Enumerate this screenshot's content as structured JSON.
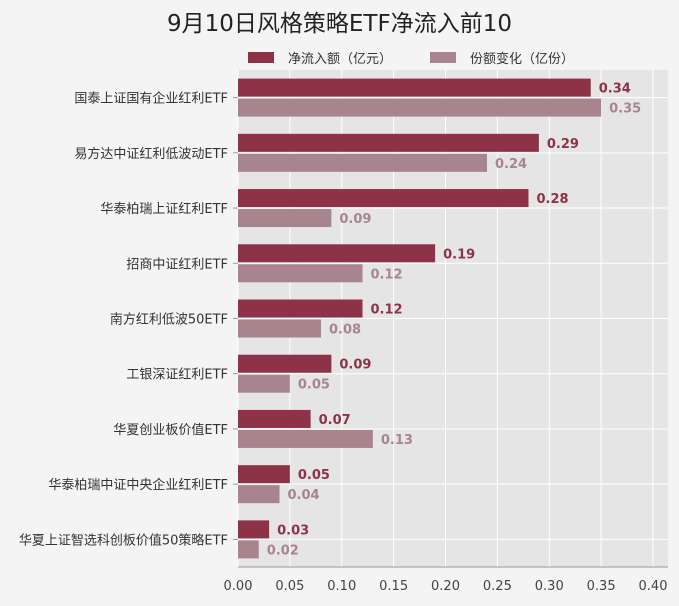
{
  "chart_data": {
    "type": "bar",
    "orientation": "horizontal",
    "title": "9月10日风格策略ETF净流入前10",
    "xlim": [
      0,
      0.4
    ],
    "x_ticks": [
      "0.00",
      "0.05",
      "0.10",
      "0.15",
      "0.20",
      "0.25",
      "0.30",
      "0.35",
      "0.40"
    ],
    "grid": true,
    "legend_position": "top",
    "categories": [
      "国泰上证国有企业红利ETF",
      "易方达中证红利低波动ETF",
      "华泰柏瑞上证红利ETF",
      "招商中证红利ETF",
      "南方红利低波50ETF",
      "工银深证红利ETF",
      "华夏创业板价值ETF",
      "华泰柏瑞中证中央企业红利ETF",
      "华夏上证智选科创板价值50策略ETF"
    ],
    "series": [
      {
        "name": "净流入额（亿元）",
        "color": "#8e3347",
        "values": [
          0.34,
          0.29,
          0.28,
          0.19,
          0.12,
          0.09,
          0.07,
          0.05,
          0.03
        ],
        "labels": [
          "0.34",
          "0.29",
          "0.28",
          "0.19",
          "0.12",
          "0.09",
          "0.07",
          "0.05",
          "0.03"
        ]
      },
      {
        "name": "份额变化（亿份）",
        "color": "#a8848f",
        "values": [
          0.35,
          0.24,
          0.09,
          0.12,
          0.08,
          0.05,
          0.13,
          0.04,
          0.02
        ],
        "labels": [
          "0.35",
          "0.24",
          "0.09",
          "0.12",
          "0.08",
          "0.05",
          "0.13",
          "0.04",
          "0.02"
        ]
      }
    ]
  }
}
